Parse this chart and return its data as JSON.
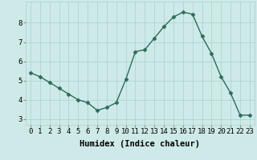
{
  "x": [
    0,
    1,
    2,
    3,
    4,
    5,
    6,
    7,
    8,
    9,
    10,
    11,
    12,
    13,
    14,
    15,
    16,
    17,
    18,
    19,
    20,
    21,
    22,
    23
  ],
  "y": [
    5.4,
    5.2,
    4.9,
    4.6,
    4.3,
    4.0,
    3.85,
    3.45,
    3.6,
    3.85,
    5.05,
    6.5,
    6.6,
    7.2,
    7.8,
    8.3,
    8.55,
    8.45,
    7.3,
    6.4,
    5.2,
    4.35,
    3.2,
    3.2
  ],
  "line_color": "#2e6b5e",
  "marker": "D",
  "markersize": 2.5,
  "linewidth": 1.0,
  "bg_color": "#ceeae8",
  "grid_color": "#b0d4d0",
  "xlabel": "Humidex (Indice chaleur)",
  "ylabel": "",
  "yticks": [
    3,
    4,
    5,
    6,
    7,
    8
  ],
  "xticks": [
    0,
    1,
    2,
    3,
    4,
    5,
    6,
    7,
    8,
    9,
    10,
    11,
    12,
    13,
    14,
    15,
    16,
    17,
    18,
    19,
    20,
    21,
    22,
    23
  ],
  "xlim": [
    -0.5,
    23.5
  ],
  "ylim": [
    2.7,
    9.1
  ],
  "xlabel_fontsize": 7.5,
  "tick_fontsize": 6.5
}
